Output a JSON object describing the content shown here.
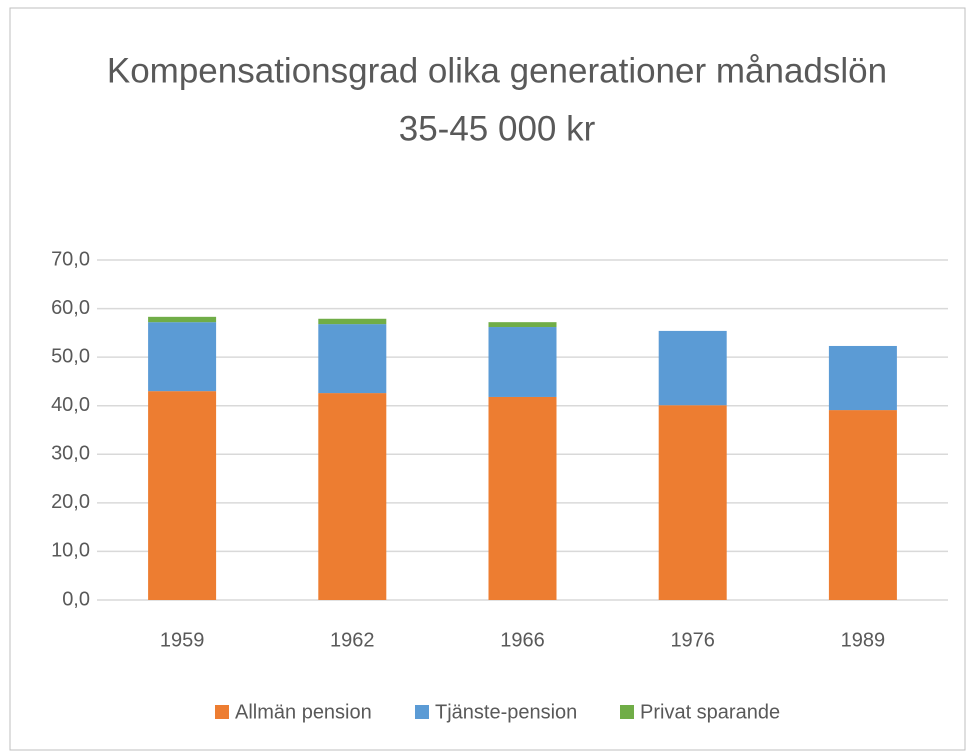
{
  "chart_data": {
    "type": "stacked_bar",
    "title": [
      "Kompensationsgrad olika generationer månadslön",
      "35-45 000 kr"
    ],
    "categories": [
      "1959",
      "1962",
      "1966",
      "1976",
      "1989"
    ],
    "series": [
      {
        "name": "Allmän pension",
        "color": "#ed7d31",
        "values": [
          43.0,
          42.6,
          41.8,
          40.1,
          39.1
        ]
      },
      {
        "name": "Tjänste-pension",
        "color": "#5b9bd5",
        "values": [
          14.2,
          14.2,
          14.4,
          15.3,
          13.2
        ]
      },
      {
        "name": "Privat sparande",
        "color": "#70ad47",
        "values": [
          1.1,
          1.1,
          1.0,
          0,
          0
        ]
      }
    ],
    "ylim": [
      0,
      70
    ],
    "yticks": [
      {
        "value": 0,
        "label": "0,0"
      },
      {
        "value": 10,
        "label": "10,0"
      },
      {
        "value": 20,
        "label": "20,0"
      },
      {
        "value": 30,
        "label": "30,0"
      },
      {
        "value": 40,
        "label": "40,0"
      },
      {
        "value": 50,
        "label": "50,0"
      },
      {
        "value": 60,
        "label": "60,0"
      },
      {
        "value": 70,
        "label": "70,0"
      }
    ],
    "grid": true,
    "legend": "bottom"
  }
}
